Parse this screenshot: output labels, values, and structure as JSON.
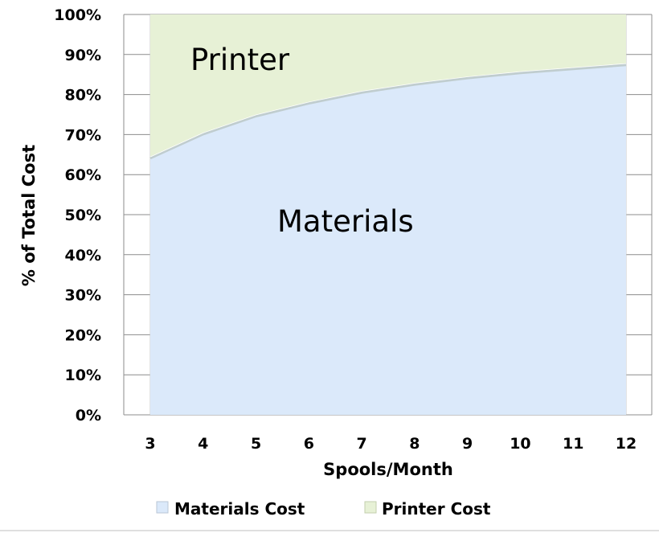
{
  "chart_data": {
    "type": "area",
    "stacked": true,
    "percent": true,
    "title": "",
    "xlabel": "Spools/Month",
    "ylabel": "% of Total Cost",
    "x": [
      3,
      4,
      5,
      6,
      7,
      8,
      9,
      10,
      11,
      12
    ],
    "ylim": [
      0,
      100
    ],
    "ytick_labels": [
      "0%",
      "10%",
      "20%",
      "30%",
      "40%",
      "50%",
      "60%",
      "70%",
      "80%",
      "90%",
      "100%"
    ],
    "series": [
      {
        "name": "Materials Cost",
        "values": [
          64.5,
          70.5,
          75,
          78.2,
          80.9,
          82.9,
          84.5,
          85.8,
          86.8,
          87.8
        ],
        "color": "#dbe9fa",
        "area_label": "Materials"
      },
      {
        "name": "Printer Cost",
        "values": [
          35.5,
          29.5,
          25,
          21.8,
          19.1,
          17.1,
          15.5,
          14.2,
          13.2,
          12.2
        ],
        "color": "#e7f1d6",
        "area_label": "Printer"
      }
    ],
    "grid": true,
    "legend_position": "bottom"
  }
}
